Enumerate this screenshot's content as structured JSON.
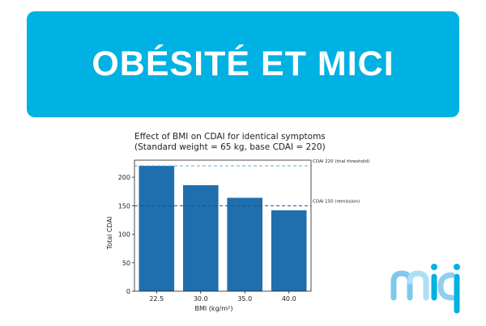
{
  "banner": {
    "title": "OBÉSITÉ ET MICI",
    "color": "#00b1e3"
  },
  "chart_data": {
    "type": "bar",
    "title": "Effect of BMI on CDAI for identical symptoms",
    "subtitle": "(Standard weight = 65 kg, base CDAI = 220)",
    "xlabel": "BMI (kg/m²)",
    "ylabel": "Total CDAI",
    "categories": [
      "22.5",
      "30.0",
      "35.0",
      "40.0"
    ],
    "values": [
      220,
      186,
      164,
      142
    ],
    "ylim": [
      0,
      230
    ],
    "yticks": [
      "0",
      "50",
      "100",
      "150",
      "200"
    ],
    "bar_color": "#1f6fae",
    "grid": false,
    "reference_lines": [
      {
        "value": 220,
        "label": "CDAI 220 (trial threshold)",
        "color": "#5da8d8"
      },
      {
        "value": 150,
        "label": "CDAI 150 (remission)",
        "color": "#1f4e8c"
      }
    ]
  },
  "logo": {
    "icon": "mici-logo-icon",
    "color": "#8fd0f0"
  }
}
